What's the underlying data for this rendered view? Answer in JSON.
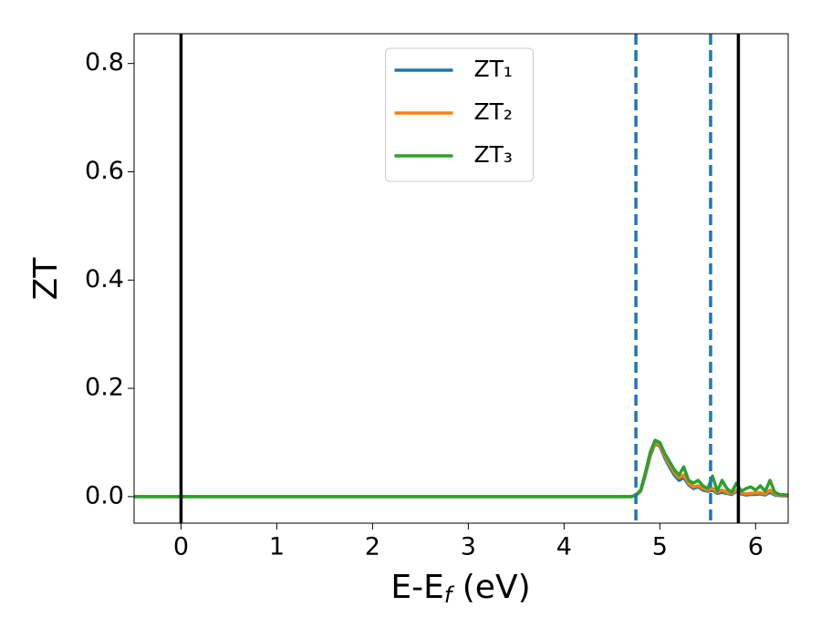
{
  "chart_data": {
    "type": "line",
    "xlabel": {
      "main": "E-E",
      "sub": "f",
      "rest": " (eV)"
    },
    "ylabel": "ZT",
    "x": [
      -0.49,
      4.0,
      4.7,
      4.75,
      4.8,
      4.85,
      4.9,
      4.95,
      5.0,
      5.05,
      5.1,
      5.15,
      5.2,
      5.25,
      5.3,
      5.35,
      5.4,
      5.45,
      5.5,
      5.55,
      5.6,
      5.65,
      5.7,
      5.75,
      5.8,
      5.85,
      5.9,
      5.95,
      6.0,
      6.05,
      6.1,
      6.15,
      6.2,
      6.25,
      6.34
    ],
    "series": [
      {
        "name": "ZT₁",
        "color": "#1f77b4",
        "values": [
          0,
          0,
          0,
          0.002,
          0.01,
          0.04,
          0.075,
          0.098,
          0.093,
          0.072,
          0.055,
          0.04,
          0.03,
          0.035,
          0.022,
          0.015,
          0.018,
          0.012,
          0.01,
          0.012,
          0.006,
          0.008,
          0.006,
          0.004,
          0.01,
          0.005,
          0.003,
          0.004,
          0.004,
          0.005,
          0.003,
          0.008,
          0.003,
          0.002,
          0.001
        ]
      },
      {
        "name": "ZT₂",
        "color": "#ff7f0e",
        "values": [
          0,
          0,
          0,
          0.002,
          0.011,
          0.042,
          0.078,
          0.1,
          0.095,
          0.076,
          0.06,
          0.045,
          0.035,
          0.04,
          0.025,
          0.018,
          0.02,
          0.015,
          0.012,
          0.015,
          0.008,
          0.012,
          0.008,
          0.006,
          0.012,
          0.007,
          0.005,
          0.006,
          0.007,
          0.007,
          0.005,
          0.012,
          0.005,
          0.003,
          0.002
        ]
      },
      {
        "name": "ZT₃",
        "color": "#2ca02c",
        "values": [
          0,
          0,
          0,
          0.003,
          0.012,
          0.045,
          0.082,
          0.104,
          0.1,
          0.08,
          0.065,
          0.05,
          0.04,
          0.055,
          0.03,
          0.025,
          0.03,
          0.02,
          0.015,
          0.038,
          0.01,
          0.03,
          0.015,
          0.008,
          0.025,
          0.01,
          0.015,
          0.018,
          0.012,
          0.02,
          0.01,
          0.03,
          0.008,
          0.004,
          0.003
        ]
      }
    ],
    "vlines": [
      {
        "x": 0,
        "color": "#000000",
        "style": "solid"
      },
      {
        "x": 5.82,
        "color": "#000000",
        "style": "solid"
      },
      {
        "x": 4.75,
        "color": "#1f77b4",
        "style": "dashed"
      },
      {
        "x": 5.53,
        "color": "#1f77b4",
        "style": "dashed"
      }
    ],
    "xlim": [
      -0.49,
      6.34
    ],
    "ylim": [
      -0.049,
      0.855
    ],
    "xticks": [
      0,
      1,
      2,
      3,
      4,
      5,
      6
    ],
    "yticks": [
      {
        "value": 0,
        "label": "0.0"
      },
      0.2,
      0.4,
      0.6,
      0.8
    ],
    "grid": false,
    "legend": "upper center"
  }
}
